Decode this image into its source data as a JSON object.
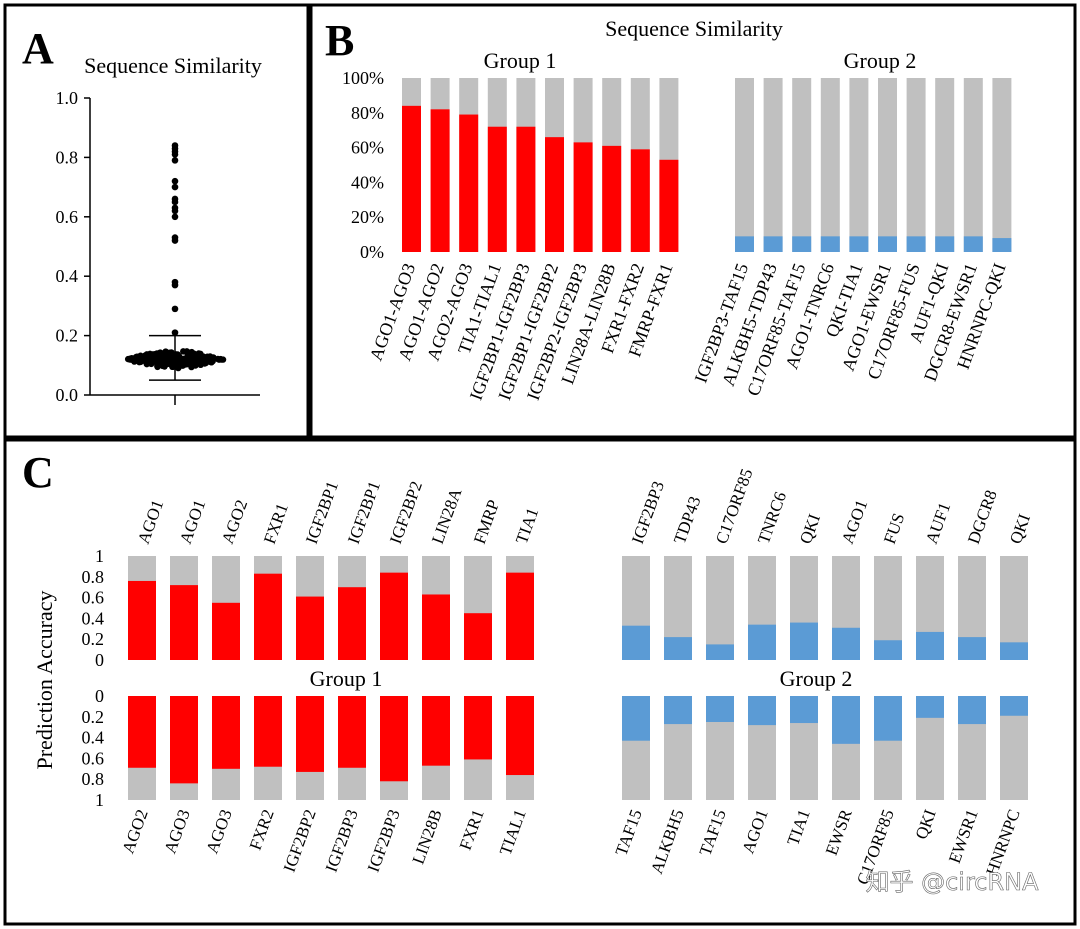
{
  "panel_labels": {
    "a": "A",
    "b": "B",
    "c": "C"
  },
  "watermark": "知乎 @circRNA",
  "colors": {
    "red": "#ff0000",
    "blue": "#5b9bd5",
    "gray": "#c0c0c0",
    "black": "#000000"
  },
  "chart_data": [
    {
      "id": "A",
      "type": "scatter",
      "title": "Sequence Similarity",
      "ylabel": "",
      "ylim": [
        0,
        1.0
      ],
      "yticks": [
        "0.0",
        "0.2",
        "0.4",
        "0.6",
        "0.8",
        "1.0"
      ],
      "outliers": [
        0.84,
        0.83,
        0.82,
        0.81,
        0.79,
        0.72,
        0.7,
        0.66,
        0.65,
        0.63,
        0.62,
        0.6,
        0.53,
        0.52,
        0.38,
        0.37,
        0.29,
        0.21
      ],
      "median": 0.12,
      "whisker_low": 0.05,
      "whisker_high": 0.2,
      "cluster_range": [
        0.09,
        0.15
      ]
    },
    {
      "id": "B",
      "type": "bar",
      "stacked": true,
      "title": "Sequence Similarity",
      "ylim": [
        0,
        100
      ],
      "yticks": [
        "0%",
        "20%",
        "40%",
        "60%",
        "80%",
        "100%"
      ],
      "groups": [
        {
          "name": "Group 1",
          "color": "#ff0000",
          "categories": [
            "AGO1-AGO3",
            "AGO1-AGO2",
            "AGO2-AGO3",
            "TIA1-TIAL1",
            "IGF2BP1-IGF2BP3",
            "IGF2BP1-IGF2BP2",
            "IGF2BP2-IGF2BP3",
            "LIN28A-LIN28B",
            "FXR1-FXR2",
            "FMRP-FXR1"
          ],
          "values": [
            84,
            82,
            79,
            72,
            72,
            66,
            63,
            61,
            59,
            53
          ]
        },
        {
          "name": "Group 2",
          "color": "#5b9bd5",
          "categories": [
            "IGF2BP3-TAF15",
            "ALKBH5-TDP43",
            "C17ORF85-TAF15",
            "AGO1-TNRC6",
            "QKI-TIA1",
            "AGO1-EWSR1",
            "C17ORF85-FUS",
            "AUF1-QKI",
            "DGCR8-EWSR1",
            "HNRNPC-QKI"
          ],
          "values": [
            9,
            9,
            9,
            9,
            9,
            9,
            9,
            9,
            9,
            8
          ]
        }
      ]
    },
    {
      "id": "C",
      "type": "bar",
      "stacked": true,
      "ylabel": "Prediction Accuracy",
      "ylim": [
        0,
        1
      ],
      "yticks_top": [
        "0",
        "0.2",
        "0.4",
        "0.6",
        "0.8",
        "1"
      ],
      "yticks_bottom": [
        "0",
        "0.2",
        "0.4",
        "0.6",
        "0.8",
        "1"
      ],
      "groups": [
        {
          "name": "Group 1",
          "color": "#ff0000",
          "top_categories": [
            "AGO1",
            "AGO1",
            "AGO2",
            "FXR1",
            "IGF2BP1",
            "IGF2BP1",
            "IGF2BP2",
            "LIN28A",
            "FMRP",
            "TIA1"
          ],
          "top_values": [
            0.76,
            0.72,
            0.55,
            0.83,
            0.61,
            0.7,
            0.84,
            0.63,
            0.45,
            0.84
          ],
          "bottom_categories": [
            "AGO2",
            "AGO3",
            "AGO3",
            "FXR2",
            "IGF2BP2",
            "IGF2BP3",
            "IGF2BP3",
            "LIN28B",
            "FXR1",
            "TIAL1"
          ],
          "bottom_values": [
            0.69,
            0.84,
            0.7,
            0.68,
            0.73,
            0.69,
            0.82,
            0.67,
            0.61,
            0.76
          ]
        },
        {
          "name": "Group 2",
          "color": "#5b9bd5",
          "top_categories": [
            "IGF2BP3",
            "TDP43",
            "C17ORF85",
            "TNRC6",
            "QKI",
            "AGO1",
            "FUS",
            "AUF1",
            "DGCR8",
            "QKI"
          ],
          "top_values": [
            0.33,
            0.22,
            0.15,
            0.34,
            0.36,
            0.31,
            0.19,
            0.27,
            0.22,
            0.17
          ],
          "bottom_categories": [
            "TAF15",
            "ALKBH5",
            "TAF15",
            "AGO1",
            "TIA1",
            "EWSR",
            "C17ORF85",
            "QKI",
            "EWSR1",
            "HNRNPC"
          ],
          "bottom_values": [
            0.43,
            0.27,
            0.25,
            0.28,
            0.26,
            0.46,
            0.43,
            0.21,
            0.27,
            0.19
          ]
        }
      ]
    }
  ]
}
